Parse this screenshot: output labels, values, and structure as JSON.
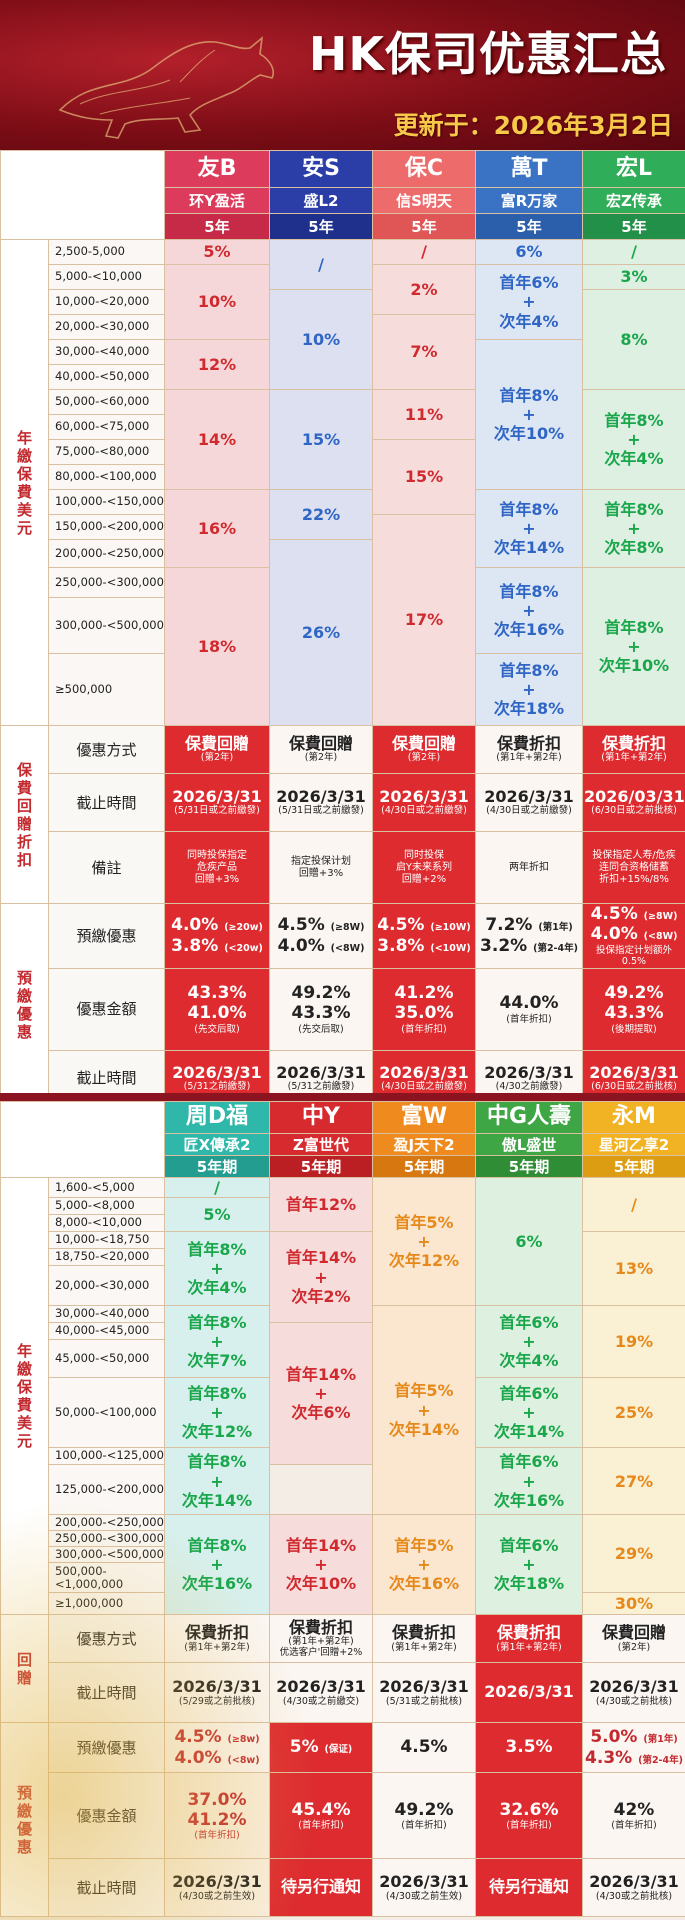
{
  "title": "HK保司优惠汇总",
  "updated": "更新于：2026年3月2日",
  "t1": {
    "labels": {
      "sec1": "年繳保費美元",
      "sec2": "保費回贈折扣",
      "sec3": "預繳優惠",
      "m": "優惠方式",
      "dl": "截止時間",
      "nt": "備註",
      "pp": "預繳優惠",
      "amt": "優惠金額",
      "dl2": "截止時間"
    },
    "companies": [
      {
        "name": "友B",
        "product": "环Y盈活",
        "years": "5年",
        "color": "#dd3b5b"
      },
      {
        "name": "安S",
        "product": "盛L2",
        "years": "5年",
        "color": "#2b3ea8"
      },
      {
        "name": "保C",
        "product": "信S明天",
        "years": "5年",
        "color": "#ee6b6b"
      },
      {
        "name": "萬T",
        "product": "富R万家",
        "years": "5年",
        "color": "#3b73c4"
      },
      {
        "name": "宏L",
        "product": "宏Z传承",
        "years": "5年",
        "color": "#2fad58"
      }
    ],
    "ranges": [
      "2,500-5,000",
      "5,000-<10,000",
      "10,000-<20,000",
      "20,000-<30,000",
      "30,000-<40,000",
      "40,000-<50,000",
      "50,000-<60,000",
      "60,000-<75,000",
      "75,000-<80,000",
      "80,000-<100,000",
      "100,000-<150,000",
      "150,000-<200,000",
      "200,000-<250,000",
      "250,000-<300,000",
      "300,000-<500,000",
      "≥500,000"
    ],
    "c1": [
      "5%",
      "10%",
      "12%",
      "14%",
      "16%",
      "18%"
    ],
    "c2": [
      "/",
      "10%",
      "15%",
      "22%",
      "26%"
    ],
    "c3": [
      "/",
      "2%",
      "7%",
      "11%",
      "15%",
      "17%"
    ],
    "c4": {
      "a": "6%",
      "b1": "首年6%",
      "b2": "+",
      "b3": "次年4%",
      "c1": "首年8%",
      "c2": "+",
      "c3": "次年10%",
      "d1": "首年8%",
      "d2": "+",
      "d3": "次年14%",
      "e1": "首年8%",
      "e2": "+",
      "e3": "次年16%",
      "f1": "首年8%",
      "f2": "+",
      "f3": "次年18%"
    },
    "c5": {
      "a": "/",
      "b": "3%",
      "c": "8%",
      "d1": "首年8%",
      "d2": "+",
      "d3": "次年4%",
      "e1": "首年8%",
      "e2": "+",
      "e3": "次年8%",
      "f1": "首年8%",
      "f2": "+",
      "f3": "次年10%"
    },
    "method": [
      {
        "t": "保費回贈",
        "s": "(第2年)"
      },
      {
        "t": "保費回贈",
        "s": "(第2年)"
      },
      {
        "t": "保費回贈",
        "s": "(第2年)"
      },
      {
        "t": "保費折扣",
        "s": "(第1年+第2年)"
      },
      {
        "t": "保費折扣",
        "s": "(第1年+第2年)"
      }
    ],
    "deadline": [
      {
        "t": "2026/3/31",
        "s": "(5/31日或之前繳發)"
      },
      {
        "t": "2026/3/31",
        "s": "(5/31日或之前繳發)"
      },
      {
        "t": "2026/3/31",
        "s": "(4/30日或之前繳發)"
      },
      {
        "t": "2026/3/31",
        "s": "(4/30日或之前繳發)"
      },
      {
        "t": "2026/03/31",
        "s": "(6/30日或之前批核)"
      }
    ],
    "note": [
      "同時投保指定\n危疾产品\n回贈+3%",
      "指定投保计划\n回贈+3%",
      "同时投保\n启Y未来系列\n回贈+2%",
      "两年折扣",
      "投保指定人寿/危疾\n连同合资格储蓄\n折扣+15%/8%"
    ],
    "prepay": [
      {
        "a": "4.0%",
        "as": "(≥20w)",
        "b": "3.8%",
        "bs": "(<20w)"
      },
      {
        "a": "4.5%",
        "as": "(≥8W)",
        "b": "4.0%",
        "bs": "(<8W)"
      },
      {
        "a": "4.5%",
        "as": "(≥10W)",
        "b": "3.8%",
        "bs": "(<10W)"
      },
      {
        "a": "7.2%",
        "as": "(第1年)",
        "b": "3.2%",
        "bs": "(第2-4年)"
      },
      {
        "a": "4.5%",
        "as": "(≥8W)",
        "b": "4.0%",
        "bs": "(<8W)",
        "c": "投保指定计划额外0.5%"
      }
    ],
    "amount": [
      {
        "a": "43.3%",
        "b": "41.0%",
        "s": "(先交后取)"
      },
      {
        "a": "49.2%",
        "b": "43.3%",
        "s": "(先交后取)"
      },
      {
        "a": "41.2%",
        "b": "35.0%",
        "s": "(首年折扣)"
      },
      {
        "a": "44.0%",
        "b": "",
        "s": "(首年折扣)"
      },
      {
        "a": "49.2%",
        "b": "43.3%",
        "s": "(後期提取)"
      }
    ],
    "deadline2": [
      {
        "t": "2026/3/31",
        "s": "(5/31之前繳發)"
      },
      {
        "t": "2026/3/31",
        "s": "(5/31之前繳發)"
      },
      {
        "t": "2026/3/31",
        "s": "(4/30日或之前繳發)"
      },
      {
        "t": "2026/3/31",
        "s": "(4/30之前繳發)"
      },
      {
        "t": "2026/3/31",
        "s": "(6/30日或之前批核)"
      }
    ]
  },
  "t2": {
    "labels": {
      "sec1": "年繳保費美元",
      "sec2": "回贈",
      "sec3": "預繳優惠",
      "m": "優惠方式",
      "dl": "截止時間",
      "pp": "預繳優惠",
      "amt": "優惠金額",
      "dl2": "截止時間"
    },
    "companies": [
      {
        "name": "周D福",
        "product": "匠X傳承2",
        "years": "5年期",
        "color": "#2fb8aa"
      },
      {
        "name": "中Y",
        "product": "Z富世代",
        "years": "5年期",
        "color": "#d62a2f"
      },
      {
        "name": "富W",
        "product": "盈J天下2",
        "years": "5年期",
        "color": "#ef8b1e"
      },
      {
        "name": "中G人壽",
        "product": "傲L盛世",
        "years": "5年期",
        "color": "#3fa646"
      },
      {
        "name": "永M",
        "product": "星河乙享2",
        "years": "5年期",
        "color": "#f1b324"
      }
    ],
    "ranges": [
      "1,600-<5,000",
      "5,000-<8,000",
      "8,000-<10,000",
      "10,000-<18,750",
      "18,750-<20,000",
      "20,000-<30,000",
      "30,000-<40,000",
      "40,000-<45,000",
      "45,000-<50,000",
      "50,000-<100,000",
      "100,000-<125,000",
      "125,000-<200,000",
      "200,000-<250,000",
      "250,000-<300,000",
      "300,000-<500,000",
      "500,000-\n<1,000,000",
      "≥1,000,000"
    ],
    "c1": {
      "a": "/",
      "b": "5%",
      "c1": "首年8%",
      "c2": "+",
      "c3": "次年4%",
      "d1": "首年8%",
      "d2": "+",
      "d3": "次年7%",
      "e1": "首年8%",
      "e2": "+",
      "e3": "次年12%",
      "f1": "首年8%",
      "f2": "+",
      "f3": "次年14%",
      "g1": "首年8%",
      "g2": "+",
      "g3": "次年16%"
    },
    "c2": {
      "a": "首年12%",
      "b1": "首年14%",
      "b2": "+",
      "b3": "次年2%",
      "c1": "首年14%",
      "c2": "+",
      "c3": "次年6%",
      "d1": "首年14%",
      "d2": "+",
      "d3": "次年10%"
    },
    "c3": {
      "a1": "首年5%",
      "a2": "+",
      "a3": "次年12%",
      "b1": "首年5%",
      "b2": "+",
      "b3": "次年14%",
      "c1": "首年5%",
      "c2": "+",
      "c3": "次年16%"
    },
    "c4": {
      "a": "6%",
      "b1": "首年6%",
      "b2": "+",
      "b3": "次年4%",
      "c1": "首年6%",
      "c2": "+",
      "c3": "次年14%",
      "d1": "首年6%",
      "d2": "+",
      "d3": "次年16%",
      "e1": "首年6%",
      "e2": "+",
      "e3": "次年18%"
    },
    "c5": [
      "/",
      "13%",
      "19%",
      "25%",
      "27%",
      "29%",
      "30%"
    ],
    "method": [
      {
        "t": "保費折扣",
        "s": "(第1年+第2年)"
      },
      {
        "t": "保費折扣",
        "s": "(第1年+第2年)",
        "s2": "优选客户'回贈+2%"
      },
      {
        "t": "保費折扣",
        "s": "(第1年+第2年)"
      },
      {
        "t": "保費折扣",
        "s": "(第1年+第2年)"
      },
      {
        "t": "保費回贈",
        "s": "(第2年)"
      }
    ],
    "deadline": [
      {
        "t": "2026/3/31",
        "s": "(5/29或之前批核)"
      },
      {
        "t": "2026/3/31",
        "s": "(4/30或之前繳交)"
      },
      {
        "t": "2026/3/31",
        "s": "(5/31或之前批核)"
      },
      {
        "t": "2026/3/31",
        "s": ""
      },
      {
        "t": "2026/3/31",
        "s": "(4/30或之前批核)"
      }
    ],
    "prepay": [
      {
        "a": "4.5%",
        "as": "(≥8w)",
        "b": "4.0%",
        "bs": "(<8w)"
      },
      {
        "a": "5%",
        "as": "(保证)",
        "b": "",
        "bs": ""
      },
      {
        "a": "4.5%",
        "as": "",
        "b": "",
        "bs": ""
      },
      {
        "a": "3.5%",
        "as": "",
        "b": "",
        "bs": ""
      },
      {
        "a": "5.0%",
        "as": "(第1年)",
        "b": "4.3%",
        "bs": "(第2-4年)"
      }
    ],
    "amount": [
      {
        "a": "37.0%",
        "b": "41.2%",
        "s": "(首年折扣)"
      },
      {
        "a": "45.4%",
        "b": "",
        "s": "(首年折扣)"
      },
      {
        "a": "49.2%",
        "b": "",
        "s": "(首年折扣)"
      },
      {
        "a": "32.6%",
        "b": "",
        "s": "(首年折扣)"
      },
      {
        "a": "42%",
        "b": "",
        "s": "(首年折扣)"
      }
    ],
    "deadline2": [
      {
        "t": "2026/3/31",
        "s": "(4/30或之前生效)"
      },
      {
        "t": "待另行通知",
        "s": ""
      },
      {
        "t": "2026/3/31",
        "s": "(4/30或之前生效)"
      },
      {
        "t": "待另行通知",
        "s": ""
      },
      {
        "t": "2026/3/31",
        "s": "(4/30或之前批核)"
      }
    ]
  }
}
